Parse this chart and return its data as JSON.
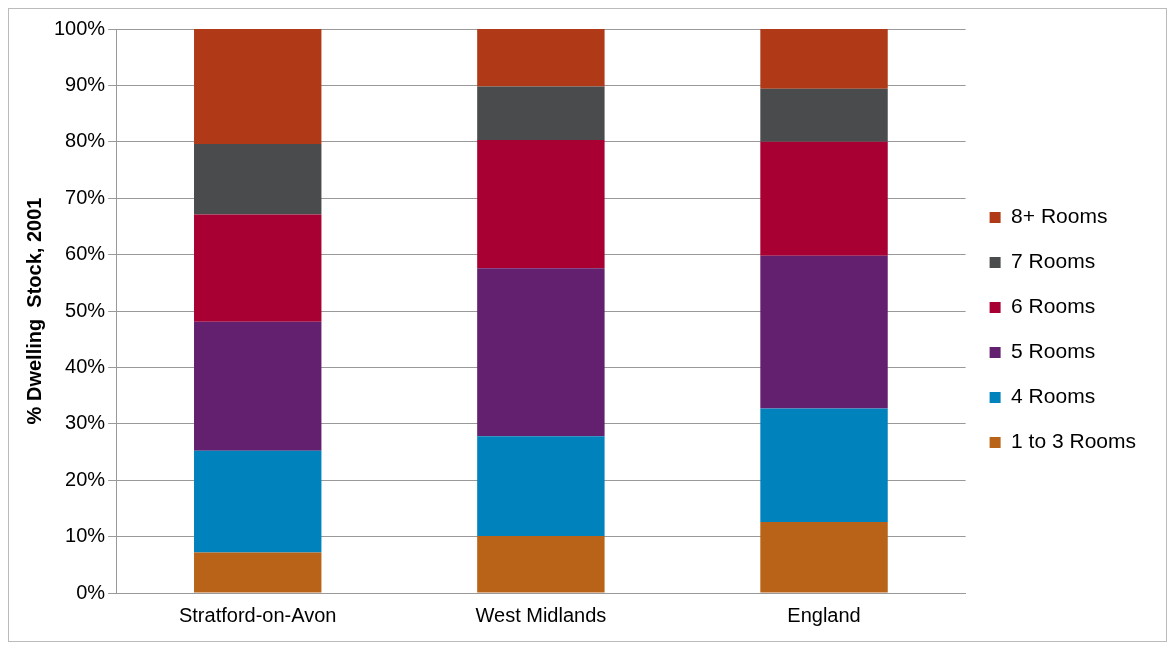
{
  "chart_data": {
    "type": "bar",
    "stacked": true,
    "ylabel": "% Dwelling  Stock, 2001",
    "categories": [
      "Stratford-on-Avon",
      "West Midlands",
      "England"
    ],
    "series": [
      {
        "name": "1 to 3 Rooms",
        "color": "#b86317",
        "values": [
          7.2,
          10.1,
          12.6
        ]
      },
      {
        "name": "4 Rooms",
        "color": "#0083bd",
        "values": [
          18.0,
          17.7,
          20.1
        ]
      },
      {
        "name": "5 Rooms",
        "color": "#63206e",
        "values": [
          22.9,
          29.8,
          27.1
        ]
      },
      {
        "name": "6 Rooms",
        "color": "#a90033",
        "values": [
          19.0,
          22.7,
          20.2
        ]
      },
      {
        "name": "7 Rooms",
        "color": "#4a4b4d",
        "values": [
          12.5,
          9.5,
          9.4
        ]
      },
      {
        "name": "8+ Rooms",
        "color": "#b03a17",
        "values": [
          20.4,
          10.2,
          10.6
        ]
      }
    ],
    "ylim": [
      0,
      100
    ],
    "yticks": [
      {
        "value": 0,
        "label": "0%"
      },
      {
        "value": 10,
        "label": "10%"
      },
      {
        "value": 20,
        "label": "20%"
      },
      {
        "value": 30,
        "label": "30%"
      },
      {
        "value": 40,
        "label": "40%"
      },
      {
        "value": 50,
        "label": "50%"
      },
      {
        "value": 60,
        "label": "60%"
      },
      {
        "value": 70,
        "label": "70%"
      },
      {
        "value": 80,
        "label": "80%"
      },
      {
        "value": 90,
        "label": "90%"
      },
      {
        "value": 100,
        "label": "100%"
      }
    ],
    "grid": "y",
    "legend": "right"
  }
}
